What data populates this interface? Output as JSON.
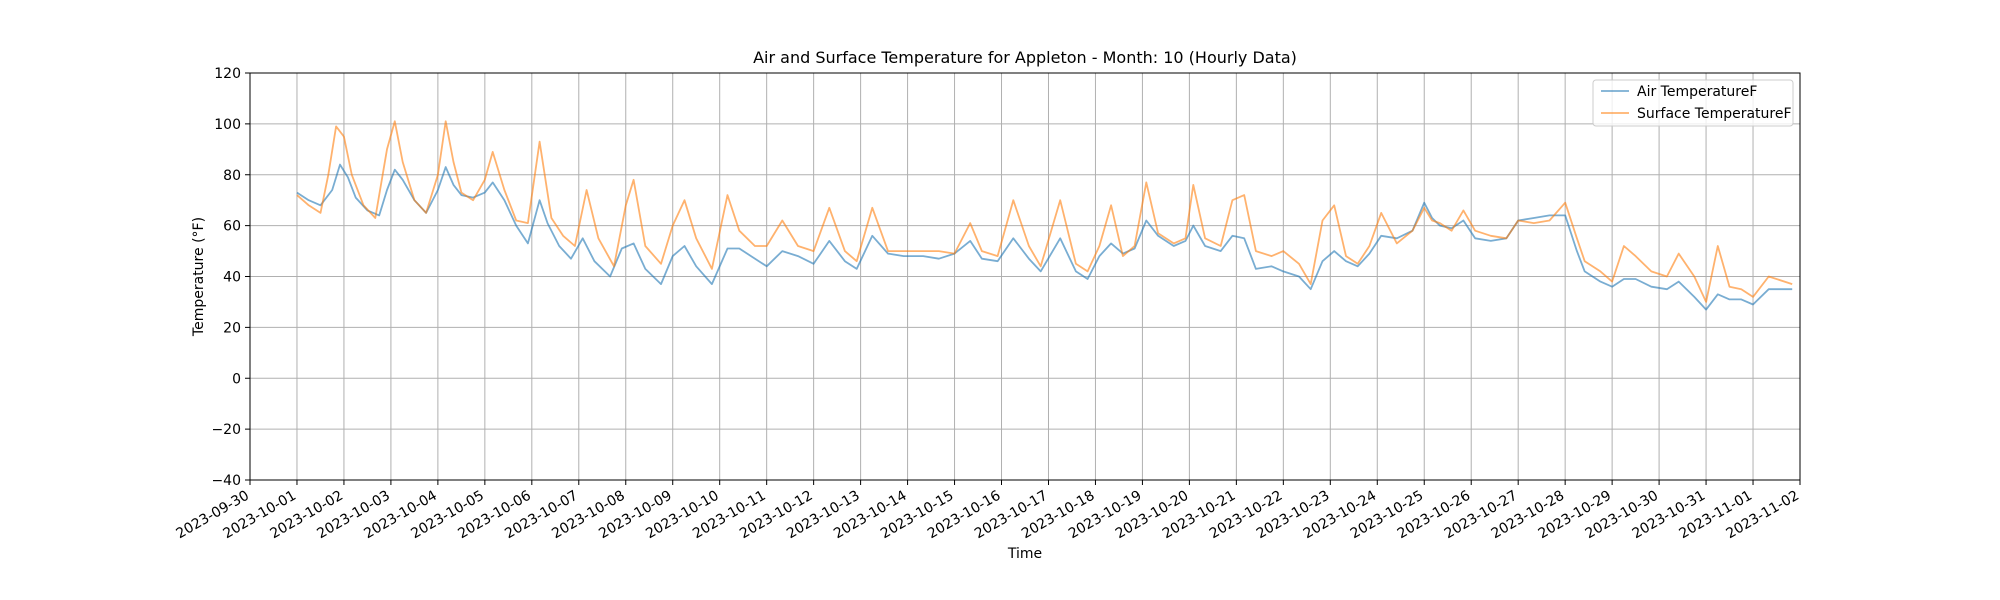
{
  "chart_data": {
    "type": "line",
    "title": "Air and Surface Temperature for Appleton - Month: 10 (Hourly Data)",
    "xlabel": "Time",
    "ylabel": "Temperature (°F)",
    "ylim": [
      -40,
      120
    ],
    "xlim": [
      "2023-09-30",
      "2023-11-02"
    ],
    "yticks": [
      -40,
      -20,
      0,
      20,
      40,
      60,
      80,
      100,
      120
    ],
    "xticks": [
      "2023-09-30",
      "2023-10-01",
      "2023-10-02",
      "2023-10-03",
      "2023-10-04",
      "2023-10-05",
      "2023-10-06",
      "2023-10-07",
      "2023-10-08",
      "2023-10-09",
      "2023-10-10",
      "2023-10-11",
      "2023-10-12",
      "2023-10-13",
      "2023-10-14",
      "2023-10-15",
      "2023-10-16",
      "2023-10-17",
      "2023-10-18",
      "2023-10-19",
      "2023-10-20",
      "2023-10-21",
      "2023-10-22",
      "2023-10-23",
      "2023-10-24",
      "2023-10-25",
      "2023-10-26",
      "2023-10-27",
      "2023-10-28",
      "2023-10-29",
      "2023-10-30",
      "2023-10-31",
      "2023-11-01",
      "2023-11-02"
    ],
    "grid": true,
    "legend_position": "top-right",
    "series": [
      {
        "name": "Air TemperatureF",
        "color": "#1f77b4",
        "points": [
          [
            "2023-10-01 00:00",
            73
          ],
          [
            "2023-10-01 06:00",
            70
          ],
          [
            "2023-10-01 12:00",
            68
          ],
          [
            "2023-10-01 18:00",
            74
          ],
          [
            "2023-10-01 22:00",
            84
          ],
          [
            "2023-10-02 02:00",
            79
          ],
          [
            "2023-10-02 06:00",
            71
          ],
          [
            "2023-10-02 12:00",
            66
          ],
          [
            "2023-10-02 18:00",
            64
          ],
          [
            "2023-10-02 22:00",
            74
          ],
          [
            "2023-10-03 02:00",
            82
          ],
          [
            "2023-10-03 06:00",
            78
          ],
          [
            "2023-10-03 12:00",
            70
          ],
          [
            "2023-10-03 18:00",
            65
          ],
          [
            "2023-10-04 00:00",
            74
          ],
          [
            "2023-10-04 04:00",
            83
          ],
          [
            "2023-10-04 08:00",
            76
          ],
          [
            "2023-10-04 12:00",
            72
          ],
          [
            "2023-10-04 18:00",
            71
          ],
          [
            "2023-10-05 00:00",
            73
          ],
          [
            "2023-10-05 04:00",
            77
          ],
          [
            "2023-10-05 10:00",
            70
          ],
          [
            "2023-10-05 16:00",
            60
          ],
          [
            "2023-10-05 22:00",
            53
          ],
          [
            "2023-10-06 04:00",
            70
          ],
          [
            "2023-10-06 08:00",
            61
          ],
          [
            "2023-10-06 14:00",
            52
          ],
          [
            "2023-10-06 20:00",
            47
          ],
          [
            "2023-10-07 02:00",
            55
          ],
          [
            "2023-10-07 08:00",
            46
          ],
          [
            "2023-10-07 16:00",
            40
          ],
          [
            "2023-10-07 22:00",
            51
          ],
          [
            "2023-10-08 04:00",
            53
          ],
          [
            "2023-10-08 10:00",
            43
          ],
          [
            "2023-10-08 18:00",
            37
          ],
          [
            "2023-10-09 00:00",
            48
          ],
          [
            "2023-10-09 06:00",
            52
          ],
          [
            "2023-10-09 12:00",
            44
          ],
          [
            "2023-10-09 20:00",
            37
          ],
          [
            "2023-10-10 04:00",
            51
          ],
          [
            "2023-10-10 10:00",
            51
          ],
          [
            "2023-10-10 16:00",
            48
          ],
          [
            "2023-10-11 00:00",
            44
          ],
          [
            "2023-10-11 08:00",
            50
          ],
          [
            "2023-10-11 16:00",
            48
          ],
          [
            "2023-10-12 00:00",
            45
          ],
          [
            "2023-10-12 08:00",
            54
          ],
          [
            "2023-10-12 16:00",
            46
          ],
          [
            "2023-10-12 22:00",
            43
          ],
          [
            "2023-10-13 06:00",
            56
          ],
          [
            "2023-10-13 14:00",
            49
          ],
          [
            "2023-10-13 22:00",
            48
          ],
          [
            "2023-10-14 08:00",
            48
          ],
          [
            "2023-10-14 16:00",
            47
          ],
          [
            "2023-10-15 00:00",
            49
          ],
          [
            "2023-10-15 08:00",
            54
          ],
          [
            "2023-10-15 14:00",
            47
          ],
          [
            "2023-10-15 22:00",
            46
          ],
          [
            "2023-10-16 06:00",
            55
          ],
          [
            "2023-10-16 14:00",
            47
          ],
          [
            "2023-10-16 20:00",
            42
          ],
          [
            "2023-10-17 06:00",
            55
          ],
          [
            "2023-10-17 14:00",
            42
          ],
          [
            "2023-10-17 20:00",
            39
          ],
          [
            "2023-10-18 02:00",
            48
          ],
          [
            "2023-10-18 08:00",
            53
          ],
          [
            "2023-10-18 14:00",
            49
          ],
          [
            "2023-10-18 20:00",
            51
          ],
          [
            "2023-10-19 02:00",
            62
          ],
          [
            "2023-10-19 08:00",
            56
          ],
          [
            "2023-10-19 16:00",
            52
          ],
          [
            "2023-10-19 22:00",
            54
          ],
          [
            "2023-10-20 02:00",
            60
          ],
          [
            "2023-10-20 08:00",
            52
          ],
          [
            "2023-10-20 16:00",
            50
          ],
          [
            "2023-10-20 22:00",
            56
          ],
          [
            "2023-10-21 04:00",
            55
          ],
          [
            "2023-10-21 10:00",
            43
          ],
          [
            "2023-10-21 18:00",
            44
          ],
          [
            "2023-10-22 00:00",
            42
          ],
          [
            "2023-10-22 08:00",
            40
          ],
          [
            "2023-10-22 14:00",
            35
          ],
          [
            "2023-10-22 20:00",
            46
          ],
          [
            "2023-10-23 02:00",
            50
          ],
          [
            "2023-10-23 08:00",
            46
          ],
          [
            "2023-10-23 14:00",
            44
          ],
          [
            "2023-10-23 20:00",
            49
          ],
          [
            "2023-10-24 02:00",
            56
          ],
          [
            "2023-10-24 10:00",
            55
          ],
          [
            "2023-10-24 18:00",
            58
          ],
          [
            "2023-10-25 00:00",
            69
          ],
          [
            "2023-10-25 04:00",
            63
          ],
          [
            "2023-10-25 08:00",
            60
          ],
          [
            "2023-10-25 14:00",
            59
          ],
          [
            "2023-10-25 20:00",
            62
          ],
          [
            "2023-10-26 02:00",
            55
          ],
          [
            "2023-10-26 10:00",
            54
          ],
          [
            "2023-10-26 18:00",
            55
          ],
          [
            "2023-10-27 00:00",
            62
          ],
          [
            "2023-10-27 08:00",
            63
          ],
          [
            "2023-10-27 16:00",
            64
          ],
          [
            "2023-10-28 00:00",
            64
          ],
          [
            "2023-10-28 06:00",
            50
          ],
          [
            "2023-10-28 10:00",
            42
          ],
          [
            "2023-10-28 18:00",
            38
          ],
          [
            "2023-10-29 00:00",
            36
          ],
          [
            "2023-10-29 06:00",
            39
          ],
          [
            "2023-10-29 12:00",
            39
          ],
          [
            "2023-10-29 20:00",
            36
          ],
          [
            "2023-10-30 04:00",
            35
          ],
          [
            "2023-10-30 10:00",
            38
          ],
          [
            "2023-10-30 18:00",
            32
          ],
          [
            "2023-10-31 00:00",
            27
          ],
          [
            "2023-10-31 06:00",
            33
          ],
          [
            "2023-10-31 12:00",
            31
          ],
          [
            "2023-10-31 18:00",
            31
          ],
          [
            "2023-11-01 00:00",
            29
          ],
          [
            "2023-11-01 08:00",
            35
          ],
          [
            "2023-11-01 20:00",
            35
          ]
        ]
      },
      {
        "name": "Surface TemperatureF",
        "color": "#ff7f0e",
        "points": [
          [
            "2023-10-01 00:00",
            72
          ],
          [
            "2023-10-01 06:00",
            68
          ],
          [
            "2023-10-01 12:00",
            65
          ],
          [
            "2023-10-01 16:00",
            80
          ],
          [
            "2023-10-01 20:00",
            99
          ],
          [
            "2023-10-02 00:00",
            95
          ],
          [
            "2023-10-02 04:00",
            80
          ],
          [
            "2023-10-02 10:00",
            68
          ],
          [
            "2023-10-02 16:00",
            63
          ],
          [
            "2023-10-02 22:00",
            90
          ],
          [
            "2023-10-03 02:00",
            101
          ],
          [
            "2023-10-03 06:00",
            85
          ],
          [
            "2023-10-03 12:00",
            70
          ],
          [
            "2023-10-03 18:00",
            65
          ],
          [
            "2023-10-04 00:00",
            80
          ],
          [
            "2023-10-04 04:00",
            101
          ],
          [
            "2023-10-04 08:00",
            85
          ],
          [
            "2023-10-04 12:00",
            73
          ],
          [
            "2023-10-04 18:00",
            70
          ],
          [
            "2023-10-05 00:00",
            78
          ],
          [
            "2023-10-05 04:00",
            89
          ],
          [
            "2023-10-05 10:00",
            74
          ],
          [
            "2023-10-05 16:00",
            62
          ],
          [
            "2023-10-05 22:00",
            61
          ],
          [
            "2023-10-06 04:00",
            93
          ],
          [
            "2023-10-06 10:00",
            63
          ],
          [
            "2023-10-06 16:00",
            56
          ],
          [
            "2023-10-06 22:00",
            52
          ],
          [
            "2023-10-07 04:00",
            74
          ],
          [
            "2023-10-07 10:00",
            55
          ],
          [
            "2023-10-07 18:00",
            44
          ],
          [
            "2023-10-08 00:00",
            68
          ],
          [
            "2023-10-08 04:00",
            78
          ],
          [
            "2023-10-08 10:00",
            52
          ],
          [
            "2023-10-08 18:00",
            45
          ],
          [
            "2023-10-09 00:00",
            60
          ],
          [
            "2023-10-09 06:00",
            70
          ],
          [
            "2023-10-09 12:00",
            55
          ],
          [
            "2023-10-09 20:00",
            43
          ],
          [
            "2023-10-10 04:00",
            72
          ],
          [
            "2023-10-10 10:00",
            58
          ],
          [
            "2023-10-10 18:00",
            52
          ],
          [
            "2023-10-11 00:00",
            52
          ],
          [
            "2023-10-11 08:00",
            62
          ],
          [
            "2023-10-11 16:00",
            52
          ],
          [
            "2023-10-12 00:00",
            50
          ],
          [
            "2023-10-12 08:00",
            67
          ],
          [
            "2023-10-12 16:00",
            50
          ],
          [
            "2023-10-12 22:00",
            46
          ],
          [
            "2023-10-13 06:00",
            67
          ],
          [
            "2023-10-13 14:00",
            50
          ],
          [
            "2023-10-13 22:00",
            50
          ],
          [
            "2023-10-14 08:00",
            50
          ],
          [
            "2023-10-14 16:00",
            50
          ],
          [
            "2023-10-15 00:00",
            49
          ],
          [
            "2023-10-15 08:00",
            61
          ],
          [
            "2023-10-15 14:00",
            50
          ],
          [
            "2023-10-15 22:00",
            48
          ],
          [
            "2023-10-16 06:00",
            70
          ],
          [
            "2023-10-16 14:00",
            52
          ],
          [
            "2023-10-16 20:00",
            44
          ],
          [
            "2023-10-17 06:00",
            70
          ],
          [
            "2023-10-17 14:00",
            45
          ],
          [
            "2023-10-17 20:00",
            42
          ],
          [
            "2023-10-18 02:00",
            52
          ],
          [
            "2023-10-18 08:00",
            68
          ],
          [
            "2023-10-18 14:00",
            48
          ],
          [
            "2023-10-18 20:00",
            52
          ],
          [
            "2023-10-19 02:00",
            77
          ],
          [
            "2023-10-19 08:00",
            57
          ],
          [
            "2023-10-19 16:00",
            53
          ],
          [
            "2023-10-19 22:00",
            55
          ],
          [
            "2023-10-20 02:00",
            76
          ],
          [
            "2023-10-20 08:00",
            55
          ],
          [
            "2023-10-20 16:00",
            52
          ],
          [
            "2023-10-20 22:00",
            70
          ],
          [
            "2023-10-21 04:00",
            72
          ],
          [
            "2023-10-21 10:00",
            50
          ],
          [
            "2023-10-21 18:00",
            48
          ],
          [
            "2023-10-22 00:00",
            50
          ],
          [
            "2023-10-22 08:00",
            45
          ],
          [
            "2023-10-22 14:00",
            37
          ],
          [
            "2023-10-22 20:00",
            62
          ],
          [
            "2023-10-23 02:00",
            68
          ],
          [
            "2023-10-23 08:00",
            48
          ],
          [
            "2023-10-23 14:00",
            45
          ],
          [
            "2023-10-23 20:00",
            52
          ],
          [
            "2023-10-24 02:00",
            65
          ],
          [
            "2023-10-24 10:00",
            53
          ],
          [
            "2023-10-24 18:00",
            58
          ],
          [
            "2023-10-25 00:00",
            67
          ],
          [
            "2023-10-25 04:00",
            62
          ],
          [
            "2023-10-25 08:00",
            61
          ],
          [
            "2023-10-25 14:00",
            58
          ],
          [
            "2023-10-25 20:00",
            66
          ],
          [
            "2023-10-26 02:00",
            58
          ],
          [
            "2023-10-26 10:00",
            56
          ],
          [
            "2023-10-26 18:00",
            55
          ],
          [
            "2023-10-27 00:00",
            62
          ],
          [
            "2023-10-27 08:00",
            61
          ],
          [
            "2023-10-27 16:00",
            62
          ],
          [
            "2023-10-28 00:00",
            69
          ],
          [
            "2023-10-28 06:00",
            55
          ],
          [
            "2023-10-28 10:00",
            46
          ],
          [
            "2023-10-28 18:00",
            42
          ],
          [
            "2023-10-29 00:00",
            38
          ],
          [
            "2023-10-29 06:00",
            52
          ],
          [
            "2023-10-29 12:00",
            48
          ],
          [
            "2023-10-29 20:00",
            42
          ],
          [
            "2023-10-30 04:00",
            40
          ],
          [
            "2023-10-30 10:00",
            49
          ],
          [
            "2023-10-30 18:00",
            40
          ],
          [
            "2023-10-31 00:00",
            30
          ],
          [
            "2023-10-31 06:00",
            52
          ],
          [
            "2023-10-31 12:00",
            36
          ],
          [
            "2023-10-31 18:00",
            35
          ],
          [
            "2023-11-01 00:00",
            32
          ],
          [
            "2023-11-01 08:00",
            40
          ],
          [
            "2023-11-01 20:00",
            37
          ]
        ]
      }
    ]
  }
}
